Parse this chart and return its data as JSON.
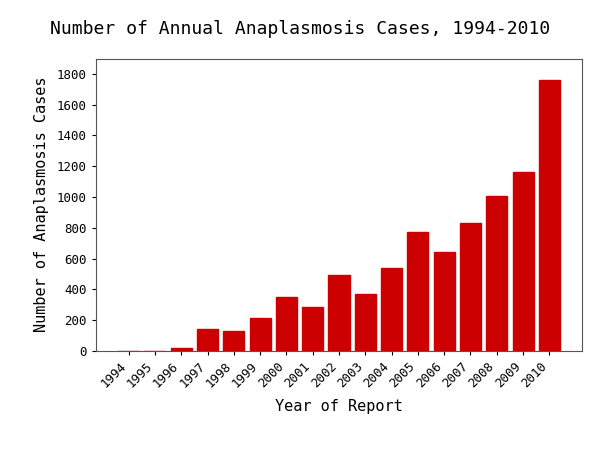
{
  "title": "Number of Annual Anaplasmosis Cases, 1994-2010",
  "xlabel": "Year of Report",
  "ylabel": "Number of Anaplasmosis Cases",
  "years": [
    1994,
    1995,
    1996,
    1997,
    1998,
    1999,
    2000,
    2001,
    2002,
    2003,
    2004,
    2005,
    2006,
    2007,
    2008,
    2009,
    2010
  ],
  "values": [
    0,
    0,
    20,
    142,
    133,
    215,
    348,
    283,
    492,
    368,
    537,
    775,
    646,
    834,
    1006,
    1161,
    1761
  ],
  "bar_color": "#cc0000",
  "ylim": [
    0,
    1900
  ],
  "yticks": [
    0,
    200,
    400,
    600,
    800,
    1000,
    1200,
    1400,
    1600,
    1800
  ],
  "background_color": "#ffffff",
  "title_fontsize": 13,
  "axis_label_fontsize": 11,
  "tick_fontsize": 9,
  "font_family": "monospace"
}
